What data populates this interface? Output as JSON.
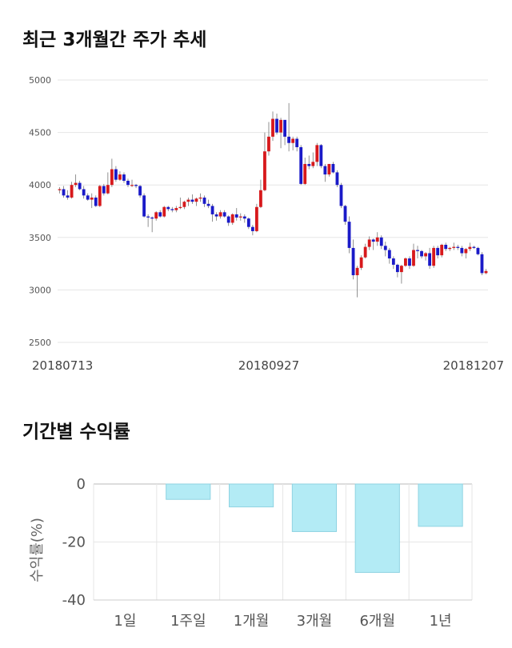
{
  "titles": {
    "price_trend": "최근 3개월간 주가 추세",
    "returns": "기간별 수익률"
  },
  "colors": {
    "up": "#d7191c",
    "down": "#1a1ac8",
    "bar": "#b3ebf5",
    "bar_border": "#8fd3e2",
    "grid": "#e6e6e6"
  },
  "chart_data": [
    {
      "type": "candlestick",
      "title": "최근 3개월간 주가 추세",
      "ylim": [
        2500,
        5000
      ],
      "yticks": [
        2500,
        3000,
        3500,
        4000,
        4500,
        5000
      ],
      "x_labels": [
        {
          "label": "20180713",
          "index": 0
        },
        {
          "label": "20180927",
          "index": 52
        },
        {
          "label": "20181207",
          "index": 106
        }
      ],
      "grid": true,
      "candles": [
        [
          3950,
          3980,
          3920,
          3960
        ],
        [
          3960,
          3990,
          3880,
          3900
        ],
        [
          3900,
          3950,
          3860,
          3880
        ],
        [
          3880,
          4030,
          3870,
          4000
        ],
        [
          4000,
          4100,
          3980,
          4020
        ],
        [
          4020,
          4040,
          3950,
          3960
        ],
        [
          3960,
          3990,
          3870,
          3900
        ],
        [
          3900,
          3920,
          3850,
          3860
        ],
        [
          3860,
          3920,
          3780,
          3880
        ],
        [
          3880,
          3900,
          3790,
          3800
        ],
        [
          3800,
          4000,
          3790,
          3990
        ],
        [
          3990,
          4010,
          3900,
          3920
        ],
        [
          3920,
          4120,
          3910,
          4000
        ],
        [
          4000,
          4250,
          3980,
          4150
        ],
        [
          4150,
          4180,
          4030,
          4050
        ],
        [
          4050,
          4130,
          4040,
          4100
        ],
        [
          4100,
          4120,
          4020,
          4040
        ],
        [
          4040,
          4060,
          3980,
          4000
        ],
        [
          4000,
          4050,
          3980,
          4000
        ],
        [
          4000,
          4010,
          3970,
          3990
        ],
        [
          3990,
          4000,
          3880,
          3900
        ],
        [
          3900,
          3920,
          3690,
          3700
        ],
        [
          3700,
          3720,
          3600,
          3690
        ],
        [
          3690,
          3700,
          3550,
          3680
        ],
        [
          3680,
          3750,
          3660,
          3740
        ],
        [
          3740,
          3760,
          3690,
          3700
        ],
        [
          3700,
          3800,
          3690,
          3790
        ],
        [
          3790,
          3800,
          3750,
          3770
        ],
        [
          3770,
          3790,
          3740,
          3760
        ],
        [
          3760,
          3800,
          3740,
          3780
        ],
        [
          3780,
          3880,
          3770,
          3790
        ],
        [
          3790,
          3850,
          3770,
          3840
        ],
        [
          3840,
          3880,
          3800,
          3860
        ],
        [
          3860,
          3910,
          3820,
          3840
        ],
        [
          3840,
          3880,
          3800,
          3870
        ],
        [
          3870,
          3920,
          3840,
          3880
        ],
        [
          3880,
          3900,
          3790,
          3820
        ],
        [
          3820,
          3860,
          3780,
          3800
        ],
        [
          3800,
          3820,
          3650,
          3720
        ],
        [
          3720,
          3740,
          3660,
          3700
        ],
        [
          3700,
          3760,
          3680,
          3740
        ],
        [
          3740,
          3760,
          3690,
          3700
        ],
        [
          3700,
          3710,
          3610,
          3640
        ],
        [
          3640,
          3730,
          3620,
          3720
        ],
        [
          3720,
          3780,
          3660,
          3690
        ],
        [
          3690,
          3730,
          3660,
          3700
        ],
        [
          3700,
          3720,
          3640,
          3680
        ],
        [
          3680,
          3690,
          3580,
          3600
        ],
        [
          3600,
          3620,
          3520,
          3560
        ],
        [
          3560,
          3820,
          3550,
          3790
        ],
        [
          3790,
          4050,
          3780,
          3950
        ],
        [
          3950,
          4500,
          3940,
          4320
        ],
        [
          4320,
          4600,
          4280,
          4460
        ],
        [
          4460,
          4700,
          4420,
          4630
        ],
        [
          4630,
          4680,
          4480,
          4500
        ],
        [
          4500,
          4640,
          4350,
          4620
        ],
        [
          4620,
          4600,
          4380,
          4460
        ],
        [
          4460,
          4780,
          4320,
          4400
        ],
        [
          4400,
          4460,
          4330,
          4440
        ],
        [
          4440,
          4460,
          4320,
          4360
        ],
        [
          4360,
          4380,
          4000,
          4010
        ],
        [
          4010,
          4260,
          4000,
          4200
        ],
        [
          4200,
          4280,
          4150,
          4180
        ],
        [
          4180,
          4310,
          4160,
          4220
        ],
        [
          4220,
          4400,
          4180,
          4380
        ],
        [
          4380,
          4390,
          4160,
          4180
        ],
        [
          4180,
          4200,
          4030,
          4100
        ],
        [
          4100,
          4200,
          4080,
          4200
        ],
        [
          4200,
          4220,
          4110,
          4120
        ],
        [
          4120,
          4140,
          3980,
          4000
        ],
        [
          4000,
          4020,
          3780,
          3800
        ],
        [
          3800,
          3810,
          3620,
          3650
        ],
        [
          3650,
          3700,
          3350,
          3400
        ],
        [
          3400,
          3480,
          3100,
          3140
        ],
        [
          3140,
          3230,
          2930,
          3210
        ],
        [
          3210,
          3330,
          3190,
          3310
        ],
        [
          3310,
          3440,
          3300,
          3410
        ],
        [
          3410,
          3510,
          3380,
          3480
        ],
        [
          3480,
          3490,
          3380,
          3460
        ],
        [
          3460,
          3550,
          3420,
          3500
        ],
        [
          3500,
          3520,
          3390,
          3420
        ],
        [
          3420,
          3460,
          3320,
          3380
        ],
        [
          3380,
          3400,
          3250,
          3300
        ],
        [
          3300,
          3320,
          3200,
          3240
        ],
        [
          3240,
          3250,
          3120,
          3170
        ],
        [
          3170,
          3240,
          3060,
          3230
        ],
        [
          3230,
          3310,
          3220,
          3300
        ],
        [
          3300,
          3320,
          3200,
          3230
        ],
        [
          3230,
          3440,
          3220,
          3380
        ],
        [
          3380,
          3420,
          3300,
          3370
        ],
        [
          3370,
          3380,
          3300,
          3320
        ],
        [
          3320,
          3360,
          3280,
          3350
        ],
        [
          3350,
          3400,
          3200,
          3230
        ],
        [
          3230,
          3420,
          3210,
          3400
        ],
        [
          3400,
          3420,
          3300,
          3330
        ],
        [
          3330,
          3440,
          3310,
          3430
        ],
        [
          3430,
          3450,
          3370,
          3390
        ],
        [
          3390,
          3410,
          3370,
          3400
        ],
        [
          3400,
          3450,
          3380,
          3410
        ],
        [
          3410,
          3430,
          3380,
          3400
        ],
        [
          3400,
          3420,
          3320,
          3350
        ],
        [
          3350,
          3400,
          3300,
          3390
        ],
        [
          3390,
          3450,
          3370,
          3410
        ],
        [
          3410,
          3420,
          3390,
          3400
        ],
        [
          3400,
          3410,
          3330,
          3340
        ],
        [
          3340,
          3360,
          3140,
          3160
        ],
        [
          3160,
          3200,
          3150,
          3180
        ]
      ]
    },
    {
      "type": "bar",
      "title": "기간별 수익률",
      "categories": [
        "1일",
        "1주일",
        "1개월",
        "3개월",
        "6개월",
        "1년"
      ],
      "values": [
        0,
        -5.3,
        -7.9,
        -16.4,
        -30.5,
        -14.6
      ],
      "ylabel": "수익률(%)",
      "ylim": [
        -40,
        0
      ],
      "yticks": [
        0,
        -20,
        -40
      ],
      "grid": true
    }
  ]
}
